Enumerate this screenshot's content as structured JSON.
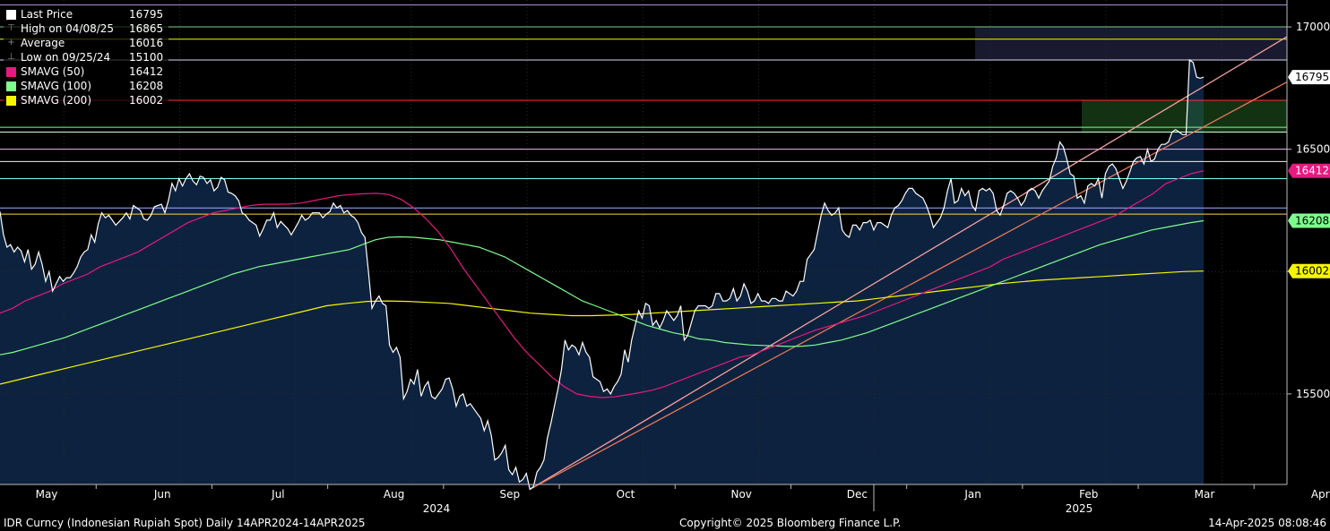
{
  "legend": [
    {
      "label": "Last Price",
      "value": "16795",
      "swatch": "#ffffff",
      "kind": "box"
    },
    {
      "label": "High on 04/08/25",
      "value": "16865",
      "kind": "high"
    },
    {
      "label": "Average",
      "value": "16016",
      "kind": "avg"
    },
    {
      "label": "Low on 09/25/24",
      "value": "15100",
      "kind": "low"
    },
    {
      "label": "SMAVG (50)",
      "value": "16412",
      "swatch": "#e6197f",
      "kind": "box"
    },
    {
      "label": "SMAVG (100)",
      "value": "16208",
      "swatch": "#7dff8c",
      "kind": "box"
    },
    {
      "label": "SMAVG (200)",
      "value": "16002",
      "swatch": "#f5f500",
      "kind": "box"
    }
  ],
  "footer": {
    "left": "IDR Curncy (Indonesian Rupiah Spot)  Daily 14APR2024-14APR2025",
    "center": "Copyright© 2025 Bloomberg Finance L.P.",
    "right": "14-Apr-2025 08:08:46"
  },
  "chart_data": {
    "type": "line",
    "title": "IDR Curncy (Indonesian Rupiah Spot)",
    "ylim": [
      15130,
      17110
    ],
    "y_ticks": [
      15500,
      16000,
      16500,
      17000
    ],
    "y_tick_labels": [
      "15500",
      "",
      "16500",
      "17000"
    ],
    "x_month_labels": [
      "May",
      "Jun",
      "Jul",
      "Aug",
      "Sep",
      "Oct",
      "Nov",
      "Dec",
      "Jan",
      "Feb",
      "Mar",
      "Apr"
    ],
    "x_year_labels": [
      "2024",
      "2025"
    ],
    "value_tags": [
      {
        "value": 16795,
        "label": "16795",
        "bg": "#ffffff",
        "fg": "#000000"
      },
      {
        "value": 16412,
        "label": "16412",
        "bg": "#e6197f",
        "fg": "#ffffff"
      },
      {
        "value": 16208,
        "label": "16208",
        "bg": "#7dff8c",
        "fg": "#000000"
      },
      {
        "value": 16002,
        "label": "16002",
        "bg": "#f5f500",
        "fg": "#000000"
      }
    ],
    "series": [
      {
        "name": "Last Price",
        "color": "#ffffff",
        "values": [
          16245,
          16150,
          16100,
          16110,
          16080,
          16100,
          16085,
          16040,
          16090,
          16010,
          16030,
          16080,
          16030,
          15960,
          16000,
          15920,
          15950,
          15980,
          15960,
          15975,
          15975,
          15995,
          16020,
          16060,
          16080,
          16090,
          16150,
          16120,
          16195,
          16240,
          16220,
          16230,
          16210,
          16190,
          16205,
          16220,
          16240,
          16215,
          16270,
          16260,
          16250,
          16215,
          16210,
          16230,
          16265,
          16270,
          16275,
          16240,
          16290,
          16360,
          16330,
          16380,
          16350,
          16380,
          16400,
          16370,
          16355,
          16390,
          16385,
          16360,
          16375,
          16330,
          16345,
          16385,
          16375,
          16325,
          16320,
          16310,
          16290,
          16240,
          16230,
          16210,
          16200,
          16190,
          16145,
          16175,
          16210,
          16210,
          16240,
          16180,
          16205,
          16190,
          16175,
          16150,
          16175,
          16200,
          16230,
          16210,
          16220,
          16240,
          16240,
          16240,
          16220,
          16235,
          16245,
          16280,
          16260,
          16270,
          16240,
          16250,
          16230,
          16220,
          16200,
          16160,
          16140,
          16000,
          15850,
          15880,
          15900,
          15870,
          15860,
          15700,
          15670,
          15690,
          15650,
          15480,
          15510,
          15560,
          15540,
          15600,
          15490,
          15530,
          15550,
          15490,
          15480,
          15500,
          15520,
          15560,
          15565,
          15520,
          15450,
          15490,
          15500,
          15450,
          15460,
          15440,
          15420,
          15400,
          15350,
          15390,
          15330,
          15230,
          15240,
          15260,
          15290,
          15190,
          15170,
          15200,
          15140,
          15150,
          15175,
          15110,
          15120,
          15180,
          15200,
          15230,
          15320,
          15380,
          15450,
          15520,
          15600,
          15720,
          15680,
          15700,
          15690,
          15660,
          15710,
          15670,
          15650,
          15570,
          15560,
          15550,
          15510,
          15520,
          15500,
          15530,
          15550,
          15580,
          15680,
          15630,
          15720,
          15780,
          15840,
          15810,
          15870,
          15860,
          15780,
          15800,
          15770,
          15800,
          15840,
          15820,
          15800,
          15820,
          15860,
          15720,
          15740,
          15790,
          15840,
          15860,
          15860,
          15860,
          15850,
          15860,
          15910,
          15910,
          15880,
          15880,
          15890,
          15930,
          15880,
          15900,
          15950,
          15920,
          15870,
          15880,
          15910,
          15880,
          15880,
          15870,
          15890,
          15890,
          15880,
          15880,
          15920,
          15910,
          15900,
          15920,
          15960,
          15960,
          16050,
          16070,
          16090,
          16160,
          16230,
          16280,
          16250,
          16230,
          16240,
          16260,
          16170,
          16150,
          16140,
          16190,
          16190,
          16170,
          16200,
          16200,
          16210,
          16170,
          16200,
          16200,
          16190,
          16180,
          16230,
          16260,
          16270,
          16290,
          16320,
          16340,
          16340,
          16320,
          16310,
          16300,
          16270,
          16230,
          16180,
          16200,
          16220,
          16260,
          16330,
          16380,
          16280,
          16290,
          16340,
          16310,
          16330,
          16270,
          16250,
          16330,
          16340,
          16330,
          16340,
          16320,
          16250,
          16230,
          16270,
          16320,
          16330,
          16320,
          16300,
          16270,
          16290,
          16330,
          16340,
          16330,
          16300,
          16330,
          16350,
          16370,
          16430,
          16465,
          16530,
          16510,
          16460,
          16400,
          16390,
          16300,
          16310,
          16280,
          16350,
          16360,
          16350,
          16380,
          16300,
          16400,
          16430,
          16440,
          16420,
          16380,
          16340,
          16370,
          16410,
          16450,
          16465,
          16470,
          16440,
          16500,
          16450,
          16460,
          16500,
          16520,
          16520,
          16530,
          16570,
          16580,
          16570,
          16560,
          16560,
          16865,
          16855,
          16795,
          16790,
          16795
        ]
      },
      {
        "name": "SMAVG (50)",
        "color": "#e6197f",
        "values": [
          15830,
          15850,
          15880,
          15900,
          15920,
          15950,
          15970,
          15990,
          16020,
          16040,
          16060,
          16080,
          16110,
          16140,
          16170,
          16200,
          16220,
          16240,
          16250,
          16260,
          16270,
          16275,
          16275,
          16276,
          16280,
          16290,
          16300,
          16310,
          16315,
          16318,
          16320,
          16315,
          16295,
          16260,
          16215,
          16160,
          16090,
          16010,
          15940,
          15870,
          15800,
          15730,
          15670,
          15620,
          15570,
          15530,
          15500,
          15490,
          15485,
          15488,
          15496,
          15505,
          15515,
          15530,
          15550,
          15570,
          15590,
          15610,
          15630,
          15650,
          15660,
          15680,
          15700,
          15720,
          15740,
          15760,
          15775,
          15790,
          15805,
          15820,
          15840,
          15860,
          15880,
          15900,
          15920,
          15940,
          15960,
          15980,
          16000,
          16020,
          16050,
          16070,
          16090,
          16110,
          16130,
          16150,
          16170,
          16190,
          16210,
          16230,
          16260,
          16290,
          16320,
          16360,
          16380,
          16400,
          16412
        ]
      },
      {
        "name": "SMAVG (100)",
        "color": "#7dff8c",
        "values": [
          15660,
          15670,
          15685,
          15700,
          15715,
          15730,
          15750,
          15770,
          15790,
          15810,
          15830,
          15850,
          15870,
          15890,
          15910,
          15930,
          15950,
          15970,
          15990,
          16005,
          16020,
          16030,
          16040,
          16050,
          16060,
          16070,
          16080,
          16090,
          16110,
          16130,
          16140,
          16142,
          16140,
          16135,
          16130,
          16120,
          16110,
          16100,
          16080,
          16060,
          16030,
          16000,
          15970,
          15940,
          15910,
          15880,
          15860,
          15840,
          15820,
          15800,
          15780,
          15765,
          15750,
          15740,
          15725,
          15720,
          15710,
          15705,
          15700,
          15698,
          15696,
          15694,
          15695,
          15700,
          15710,
          15720,
          15735,
          15750,
          15770,
          15790,
          15810,
          15830,
          15850,
          15870,
          15890,
          15910,
          15930,
          15950,
          15970,
          15990,
          16010,
          16030,
          16050,
          16070,
          16090,
          16110,
          16125,
          16140,
          16155,
          16170,
          16180,
          16190,
          16200,
          16208
        ]
      },
      {
        "name": "SMAVG (200)",
        "color": "#f5f500",
        "values": [
          15540,
          15560,
          15580,
          15600,
          15620,
          15640,
          15660,
          15680,
          15700,
          15720,
          15740,
          15760,
          15780,
          15800,
          15820,
          15840,
          15860,
          15870,
          15878,
          15880,
          15878,
          15874,
          15870,
          15860,
          15850,
          15840,
          15830,
          15825,
          15820,
          15820,
          15822,
          15825,
          15830,
          15835,
          15840,
          15845,
          15850,
          15855,
          15860,
          15865,
          15870,
          15875,
          15880,
          15890,
          15900,
          15910,
          15920,
          15930,
          15940,
          15950,
          15958,
          15965,
          15970,
          15975,
          15980,
          15985,
          15990,
          15995,
          16000,
          16002
        ]
      }
    ],
    "trendlines": [
      {
        "color": "#f4a0a0",
        "from": {
          "value": 15130
        },
        "to_value": 16960
      },
      {
        "color": "#e8785a",
        "from": {
          "value": 15130
        },
        "to_value": 16775
      }
    ],
    "horizontal_lines": [
      {
        "value": 17090,
        "color": "#a78fd6"
      },
      {
        "value": 17000,
        "color": "#7dcf8a"
      },
      {
        "value": 16950,
        "color": "#f5f500"
      },
      {
        "value": 16865,
        "color": "#d8d8f8"
      },
      {
        "value": 16700,
        "color": "#ff3030"
      },
      {
        "value": 16590,
        "color": "#7dff8c"
      },
      {
        "value": 16570,
        "color": "#d0ffd0"
      },
      {
        "value": 16500,
        "color": "#f0b8f0"
      },
      {
        "value": 16450,
        "color": "#f0f0f0"
      },
      {
        "value": 16380,
        "color": "#7affff"
      },
      {
        "value": 16260,
        "color": "#9fb0ff"
      },
      {
        "value": 16235,
        "color": "#ffd24d"
      }
    ],
    "grid": true,
    "legend_position": "top-left"
  }
}
